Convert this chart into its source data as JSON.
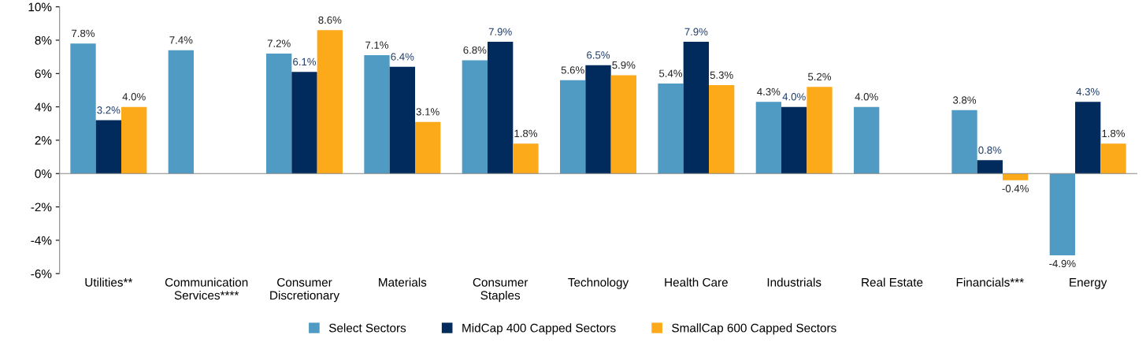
{
  "chart_data": {
    "type": "bar",
    "categories": [
      "Utilities**",
      "Communication\nServices****",
      "Consumer\nDiscretionary",
      "Materials",
      "Consumer\nStaples",
      "Technology",
      "Health Care",
      "Industrials",
      "Real Estate",
      "Financials***",
      "Energy"
    ],
    "series": [
      {
        "name": "Select Sectors",
        "color": "#4f9bc4",
        "values": [
          7.8,
          7.4,
          7.2,
          7.1,
          6.8,
          5.6,
          5.4,
          4.3,
          4.0,
          3.8,
          -4.9
        ],
        "value_labels": [
          "7.8%",
          "7.4%",
          "7.2%",
          "7.1%",
          "6.8%",
          "5.6%",
          "5.4%",
          "4.3%",
          "4.0%",
          "3.8%",
          "-4.9%"
        ]
      },
      {
        "name": "MidCap 400 Capped Sectors",
        "color": "#002b5c",
        "values": [
          3.2,
          null,
          6.1,
          6.4,
          7.9,
          6.5,
          7.9,
          4.0,
          null,
          0.8,
          4.3
        ],
        "value_labels": [
          "3.2%",
          null,
          "6.1%",
          "6.4%",
          "7.9%",
          "6.5%",
          "7.9%",
          "4.0%",
          null,
          "0.8%",
          "4.3%"
        ]
      },
      {
        "name": "SmallCap 600 Capped Sectors",
        "color": "#fdaa1a",
        "values": [
          4.0,
          null,
          8.6,
          3.1,
          1.8,
          5.9,
          5.3,
          5.2,
          null,
          -0.4,
          1.8
        ],
        "value_labels": [
          "4.0%",
          null,
          "8.6%",
          "3.1%",
          "1.8%",
          "5.9%",
          "5.3%",
          "5.2%",
          null,
          "-0.4%",
          "1.8%"
        ]
      }
    ],
    "ylim": [
      -6,
      10
    ],
    "yticks": [
      {
        "value": -6,
        "label": "-6%"
      },
      {
        "value": -4,
        "label": "-4%"
      },
      {
        "value": -2,
        "label": "-2%"
      },
      {
        "value": 0,
        "label": "0%"
      },
      {
        "value": 2,
        "label": "2%"
      },
      {
        "value": 4,
        "label": "4%"
      },
      {
        "value": 6,
        "label": "6%"
      },
      {
        "value": 8,
        "label": "8%"
      },
      {
        "value": 10,
        "label": "10%"
      }
    ],
    "legend": "bottom"
  }
}
